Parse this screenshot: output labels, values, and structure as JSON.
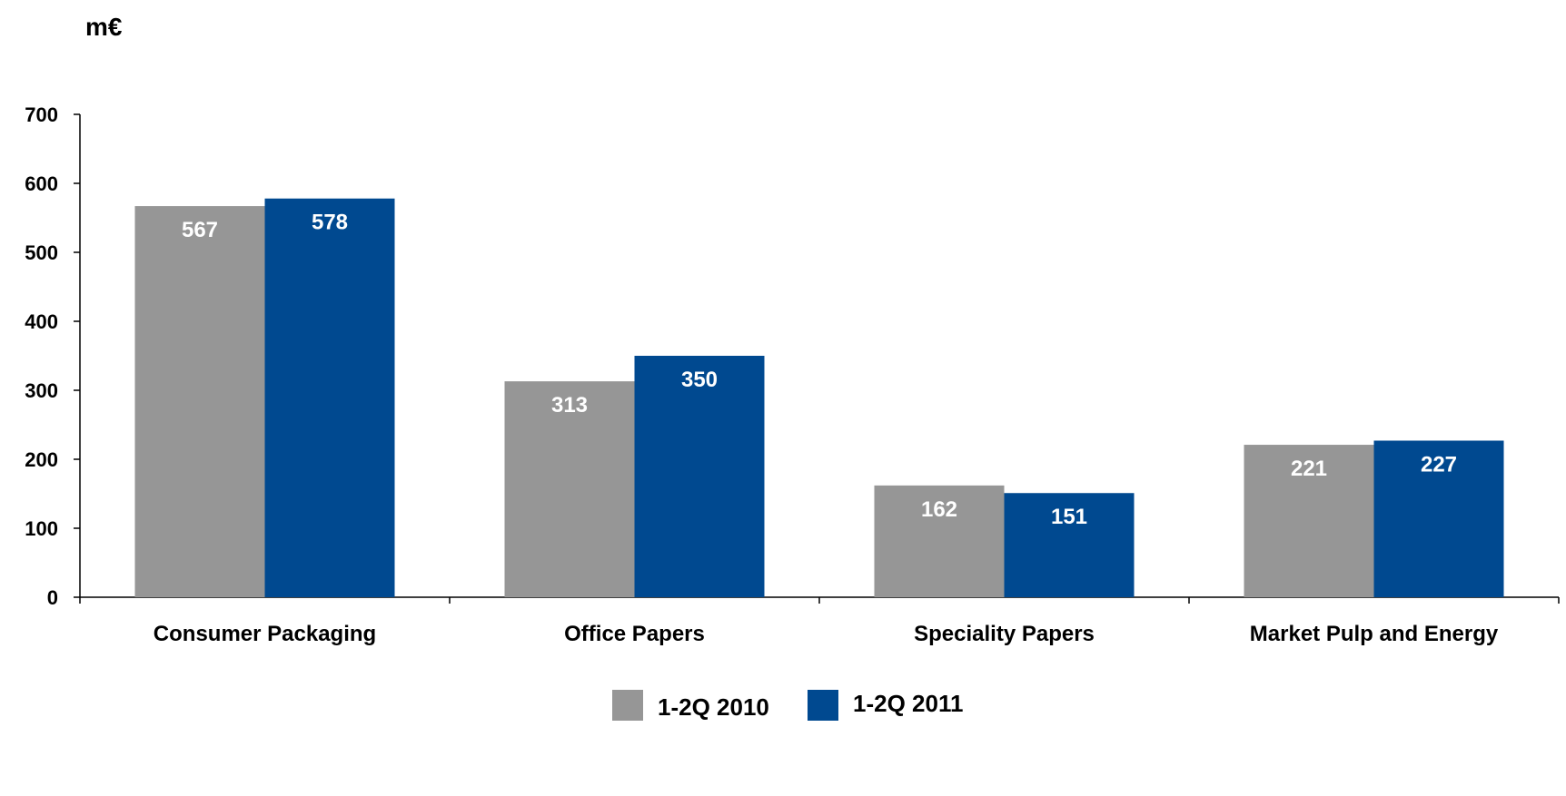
{
  "chart_data": {
    "type": "bar",
    "unit_label": "m€",
    "categories": [
      "Consumer Packaging",
      "Office Papers",
      "Speciality Papers",
      "Market Pulp and Energy"
    ],
    "series": [
      {
        "name": "1-2Q 2010",
        "values": [
          567,
          313,
          162,
          221
        ],
        "color": "#969696"
      },
      {
        "name": "1-2Q 2011",
        "values": [
          578,
          350,
          151,
          227
        ],
        "color": "#004990"
      }
    ],
    "ylim": [
      0,
      700
    ],
    "yticks": [
      0,
      100,
      200,
      300,
      400,
      500,
      600,
      700
    ],
    "grid": false,
    "legend_position": "bottom-center",
    "data_label_color": "#ffffff",
    "axis_color": "#000000"
  }
}
